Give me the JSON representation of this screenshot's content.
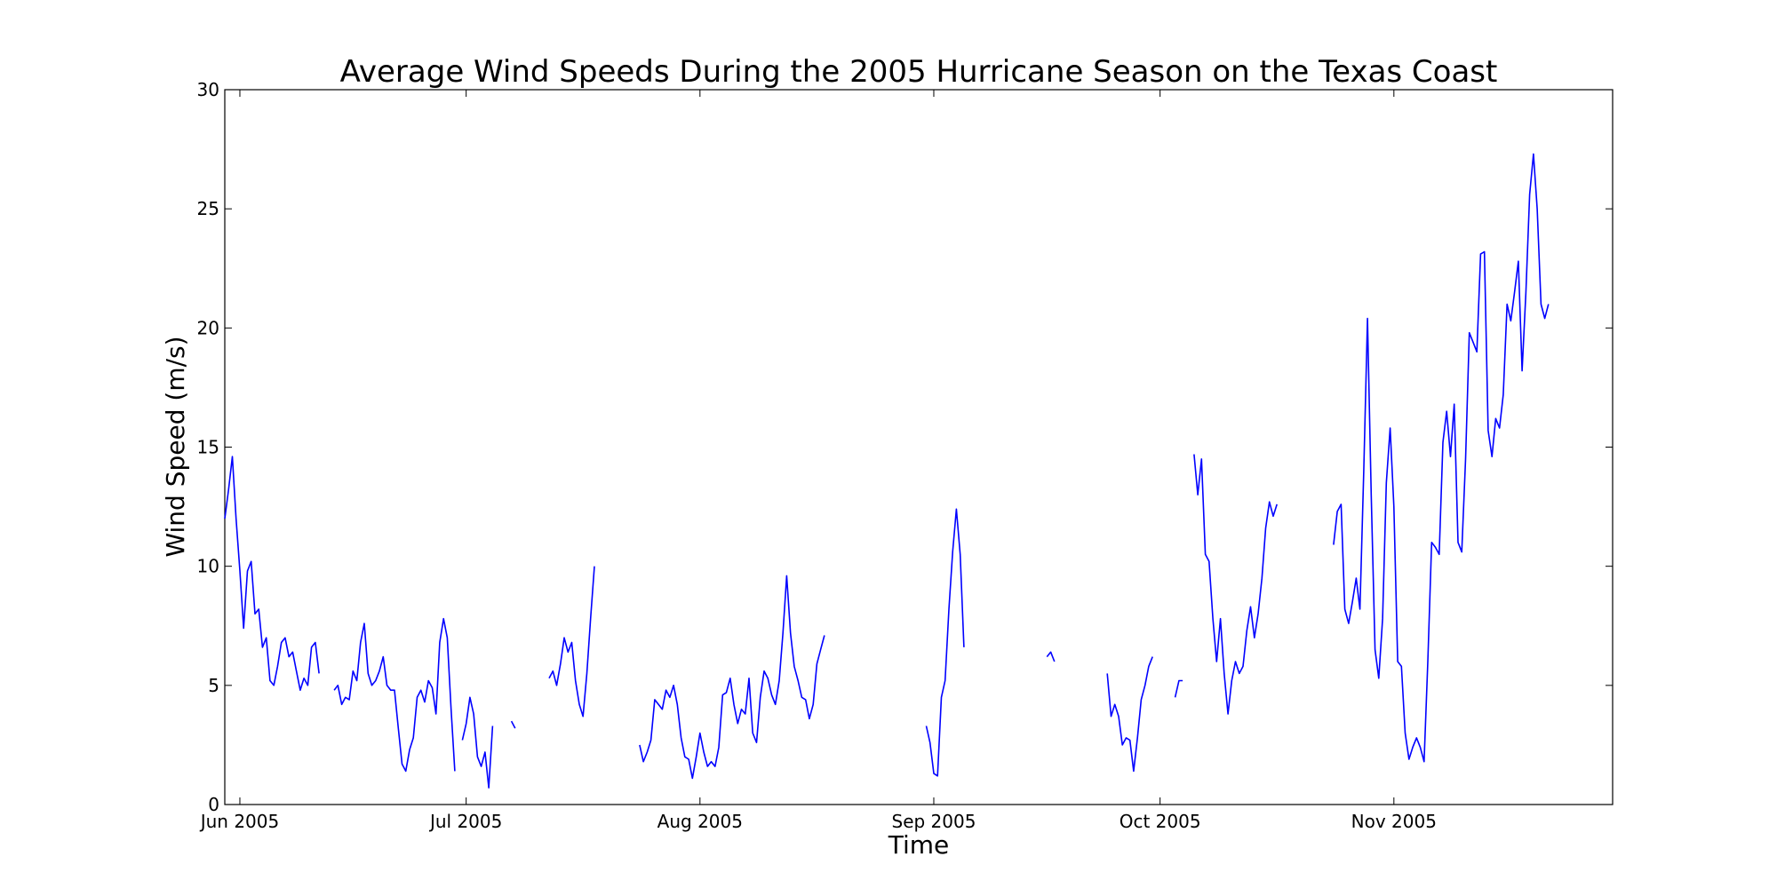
{
  "chart_data": {
    "type": "line",
    "title": "Average Wind Speeds During the 2005 Hurricane Season on the Texas Coast",
    "xlabel": "Time",
    "ylabel": "Wind Speed (m/s)",
    "xlim": [
      "2005-05-30",
      "2005-11-30"
    ],
    "ylim": [
      0,
      30
    ],
    "yticks": [
      0,
      5,
      10,
      15,
      20,
      25,
      30
    ],
    "xticks": [
      {
        "date": "2005-06-01",
        "label": "Jun 2005"
      },
      {
        "date": "2005-07-01",
        "label": "Jul 2005"
      },
      {
        "date": "2005-08-01",
        "label": "Aug 2005"
      },
      {
        "date": "2005-09-01",
        "label": "Sep 2005"
      },
      {
        "date": "2005-10-01",
        "label": "Oct 2005"
      },
      {
        "date": "2005-11-01",
        "label": "Nov 2005"
      }
    ],
    "grid": false,
    "color": "#0000ff",
    "segments": [
      {
        "x": [
          "2005-05-30",
          "2005-05-30T12",
          "2005-05-31",
          "2005-05-31T12",
          "2005-06-01",
          "2005-06-01T12",
          "2005-06-02",
          "2005-06-02T12",
          "2005-06-03",
          "2005-06-03T12",
          "2005-06-04",
          "2005-06-04T12",
          "2005-06-05",
          "2005-06-05T12",
          "2005-06-06",
          "2005-06-06T12",
          "2005-06-07",
          "2005-06-07T12",
          "2005-06-08",
          "2005-06-08T12",
          "2005-06-09",
          "2005-06-09T12",
          "2005-06-10",
          "2005-06-10T12",
          "2005-06-11",
          "2005-06-11T12",
          "2005-06-12",
          "2005-06-12T12"
        ],
        "y": [
          12.0,
          13.2,
          14.6,
          12.0,
          9.8,
          7.4,
          9.8,
          10.2,
          8.0,
          8.2,
          6.6,
          7.0,
          5.2,
          5.0,
          5.8,
          6.8,
          7.0,
          6.2,
          6.4,
          5.6,
          4.8,
          5.3,
          5.0,
          6.6,
          6.8,
          5.5,
          null,
          null
        ]
      },
      {
        "x": [
          "2005-06-13T12",
          "2005-06-14",
          "2005-06-14T12",
          "2005-06-15",
          "2005-06-15T12",
          "2005-06-16",
          "2005-06-16T12",
          "2005-06-17",
          "2005-06-17T12",
          "2005-06-18",
          "2005-06-18T12",
          "2005-06-19",
          "2005-06-19T12",
          "2005-06-20",
          "2005-06-20T12",
          "2005-06-21",
          "2005-06-21T12",
          "2005-06-22",
          "2005-06-22T12",
          "2005-06-23",
          "2005-06-23T12",
          "2005-06-24",
          "2005-06-24T12",
          "2005-06-25",
          "2005-06-25T12",
          "2005-06-26",
          "2005-06-26T12",
          "2005-06-27",
          "2005-06-27T12",
          "2005-06-28",
          "2005-06-28T12",
          "2005-06-29",
          "2005-06-29T12"
        ],
        "y": [
          4.8,
          5.0,
          4.2,
          4.5,
          4.4,
          5.6,
          5.2,
          6.8,
          7.6,
          5.5,
          5.0,
          5.2,
          5.6,
          6.2,
          5.0,
          4.8,
          4.8,
          3.2,
          1.7,
          1.4,
          2.3,
          2.8,
          4.5,
          4.8,
          4.3,
          5.2,
          4.9,
          3.8,
          6.8,
          7.8,
          7.0,
          4.0,
          1.4
        ]
      },
      {
        "x": [
          "2005-06-30T12",
          "2005-07-01",
          "2005-07-01T12",
          "2005-07-02",
          "2005-07-02T12",
          "2005-07-03",
          "2005-07-03T12",
          "2005-07-04",
          "2005-07-04T12"
        ],
        "y": [
          2.7,
          3.4,
          4.5,
          3.8,
          2.0,
          1.6,
          2.2,
          0.7,
          3.3
        ]
      },
      {
        "x": [
          "2005-07-07",
          "2005-07-07T12"
        ],
        "y": [
          3.5,
          3.2
        ]
      },
      {
        "x": [
          "2005-07-12",
          "2005-07-12T12",
          "2005-07-13",
          "2005-07-13T12",
          "2005-07-14",
          "2005-07-14T12",
          "2005-07-15",
          "2005-07-15T12",
          "2005-07-16",
          "2005-07-16T12",
          "2005-07-17",
          "2005-07-17T12",
          "2005-07-18"
        ],
        "y": [
          5.3,
          5.6,
          5.0,
          5.9,
          7.0,
          6.4,
          6.8,
          5.2,
          4.2,
          3.7,
          5.5,
          7.8,
          10.0
        ]
      },
      {
        "x": [
          "2005-07-24",
          "2005-07-24T12",
          "2005-07-25",
          "2005-07-25T12",
          "2005-07-26",
          "2005-07-26T12",
          "2005-07-27",
          "2005-07-27T12",
          "2005-07-28",
          "2005-07-28T12",
          "2005-07-29",
          "2005-07-29T12",
          "2005-07-30",
          "2005-07-30T12",
          "2005-07-31",
          "2005-07-31T12",
          "2005-08-01",
          "2005-08-01T12",
          "2005-08-02",
          "2005-08-02T12",
          "2005-08-03",
          "2005-08-03T12",
          "2005-08-04",
          "2005-08-04T12",
          "2005-08-05",
          "2005-08-05T12",
          "2005-08-06",
          "2005-08-06T12",
          "2005-08-07",
          "2005-08-07T12",
          "2005-08-08",
          "2005-08-08T12",
          "2005-08-09",
          "2005-08-09T12",
          "2005-08-10",
          "2005-08-10T12",
          "2005-08-11",
          "2005-08-11T12",
          "2005-08-12",
          "2005-08-12T12",
          "2005-08-13",
          "2005-08-13T12",
          "2005-08-14",
          "2005-08-14T12",
          "2005-08-15",
          "2005-08-15T12",
          "2005-08-16",
          "2005-08-16T12",
          "2005-08-17",
          "2005-08-17T12",
          "2005-08-18",
          "2005-08-18T12",
          "2005-08-19",
          "2005-08-19T12",
          "2005-08-20",
          "2005-08-20T12",
          "2005-08-21",
          "2005-08-21T12",
          "2005-08-22",
          "2005-08-22T12"
        ],
        "y": [
          2.5,
          1.8,
          2.2,
          2.7,
          4.4,
          4.2,
          4.0,
          4.8,
          4.5,
          5.0,
          4.2,
          2.8,
          2.0,
          1.9,
          1.1,
          2.0,
          3.0,
          2.2,
          1.6,
          1.8,
          1.6,
          2.4,
          4.6,
          4.7,
          5.3,
          4.2,
          3.4,
          4.0,
          3.8,
          5.3,
          3.0,
          2.6,
          4.5,
          5.6,
          5.3,
          4.6,
          4.2,
          5.2,
          7.2,
          9.6,
          7.2,
          5.8,
          5.2,
          4.5,
          4.4,
          3.6,
          4.2,
          5.9,
          6.5,
          7.1,
          null,
          null,
          null,
          null,
          null,
          null,
          null,
          null,
          null,
          null
        ]
      },
      {
        "x": [
          "2005-08-31",
          "2005-08-31T12",
          "2005-09-01",
          "2005-09-01T12",
          "2005-09-02",
          "2005-09-02T12",
          "2005-09-03",
          "2005-09-03T12",
          "2005-09-04",
          "2005-09-04T12",
          "2005-09-05"
        ],
        "y": [
          3.3,
          2.6,
          1.3,
          1.2,
          4.5,
          5.2,
          8.2,
          10.6,
          12.4,
          10.5,
          6.6
        ]
      },
      {
        "x": [
          "2005-09-16",
          "2005-09-16T12",
          "2005-09-17"
        ],
        "y": [
          6.2,
          6.4,
          6.0
        ]
      },
      {
        "x": [
          "2005-09-24",
          "2005-09-24T12",
          "2005-09-25",
          "2005-09-25T12",
          "2005-09-26",
          "2005-09-26T12",
          "2005-09-27",
          "2005-09-27T12",
          "2005-09-28",
          "2005-09-28T12",
          "2005-09-29",
          "2005-09-29T12",
          "2005-09-30",
          "2005-09-30T12",
          "2005-10-01",
          "2005-10-01T12",
          "2005-10-02"
        ],
        "y": [
          5.5,
          3.7,
          4.2,
          3.7,
          2.5,
          2.8,
          2.7,
          1.4,
          2.8,
          4.4,
          5.0,
          5.8,
          6.2,
          null,
          null,
          null,
          null
        ]
      },
      {
        "x": [
          "2005-10-03",
          "2005-10-03T12",
          "2005-10-04"
        ],
        "y": [
          4.5,
          5.2,
          5.2
        ]
      },
      {
        "x": [
          "2005-10-05T12",
          "2005-10-06",
          "2005-10-06T12",
          "2005-10-07",
          "2005-10-07T12",
          "2005-10-08",
          "2005-10-08T12",
          "2005-10-09",
          "2005-10-09T12",
          "2005-10-10",
          "2005-10-10T12",
          "2005-10-11",
          "2005-10-11T12",
          "2005-10-12",
          "2005-10-12T12",
          "2005-10-13",
          "2005-10-13T12",
          "2005-10-14",
          "2005-10-14T12",
          "2005-10-15",
          "2005-10-15T12",
          "2005-10-16",
          "2005-10-16T12",
          "2005-10-17",
          "2005-10-17T12",
          "2005-10-18",
          "2005-10-18T12",
          "2005-10-19",
          "2005-10-19T12",
          "2005-10-20"
        ],
        "y": [
          14.7,
          13.0,
          14.5,
          10.5,
          10.2,
          7.8,
          6.0,
          7.8,
          5.5,
          3.8,
          5.2,
          6.0,
          5.5,
          5.8,
          7.3,
          8.3,
          7.0,
          8.0,
          9.5,
          11.6,
          12.7,
          12.1,
          12.6,
          null,
          null,
          null,
          null,
          null,
          null,
          null
        ]
      },
      {
        "x": [
          "2005-10-24",
          "2005-10-24T12",
          "2005-10-25",
          "2005-10-25T12",
          "2005-10-26",
          "2005-10-26T12",
          "2005-10-27",
          "2005-10-27T12",
          "2005-10-28",
          "2005-10-28T12",
          "2005-10-29",
          "2005-10-29T12",
          "2005-10-30",
          "2005-10-30T12",
          "2005-10-31",
          "2005-10-31T12",
          "2005-11-01",
          "2005-11-01T12",
          "2005-11-02",
          "2005-11-02T12",
          "2005-11-03",
          "2005-11-03T12",
          "2005-11-04",
          "2005-11-04T12",
          "2005-11-05",
          "2005-11-05T12",
          "2005-11-06",
          "2005-11-06T12",
          "2005-11-07",
          "2005-11-07T12",
          "2005-11-08",
          "2005-11-08T12",
          "2005-11-09",
          "2005-11-09T12",
          "2005-11-10",
          "2005-11-10T12",
          "2005-11-11",
          "2005-11-11T12",
          "2005-11-12",
          "2005-11-12T12",
          "2005-11-13",
          "2005-11-13T12",
          "2005-11-14",
          "2005-11-14T12",
          "2005-11-15",
          "2005-11-15T12",
          "2005-11-16",
          "2005-11-16T12",
          "2005-11-17",
          "2005-11-17T12",
          "2005-11-18",
          "2005-11-18T12",
          "2005-11-19",
          "2005-11-19T12",
          "2005-11-20",
          "2005-11-20T12",
          "2005-11-21",
          "2005-11-21T12",
          "2005-11-22",
          "2005-11-22T12",
          "2005-11-23",
          "2005-11-23T12",
          "2005-11-24",
          "2005-11-24T12",
          "2005-11-25",
          "2005-11-25T12",
          "2005-11-26",
          "2005-11-26T12",
          "2005-11-27",
          "2005-11-27T12",
          "2005-11-28",
          "2005-11-28T12",
          "2005-11-29",
          "2005-11-29T12",
          "2005-11-30"
        ],
        "y": [
          10.9,
          12.3,
          12.6,
          8.2,
          7.6,
          8.5,
          9.5,
          8.2,
          14.0,
          20.4,
          13.0,
          6.5,
          5.3,
          7.8,
          13.5,
          15.8,
          12.5,
          6.0,
          5.8,
          3.0,
          1.9,
          2.4,
          2.8,
          2.4,
          1.8,
          6.0,
          11.0,
          10.8,
          10.5,
          15.2,
          16.5,
          14.6,
          16.8,
          11.0,
          10.6,
          14.5,
          19.8,
          19.4,
          19.0,
          23.1,
          23.2,
          15.7,
          14.6,
          16.2,
          15.8,
          17.2,
          21.0,
          20.3,
          21.5,
          22.8,
          18.2,
          21.5,
          25.6,
          27.3,
          25.0,
          21.0,
          20.4,
          21.0,
          null,
          null,
          null,
          null,
          null,
          null,
          null,
          null,
          null,
          null,
          null,
          null,
          null,
          null,
          null,
          null,
          null
        ]
      }
    ]
  }
}
